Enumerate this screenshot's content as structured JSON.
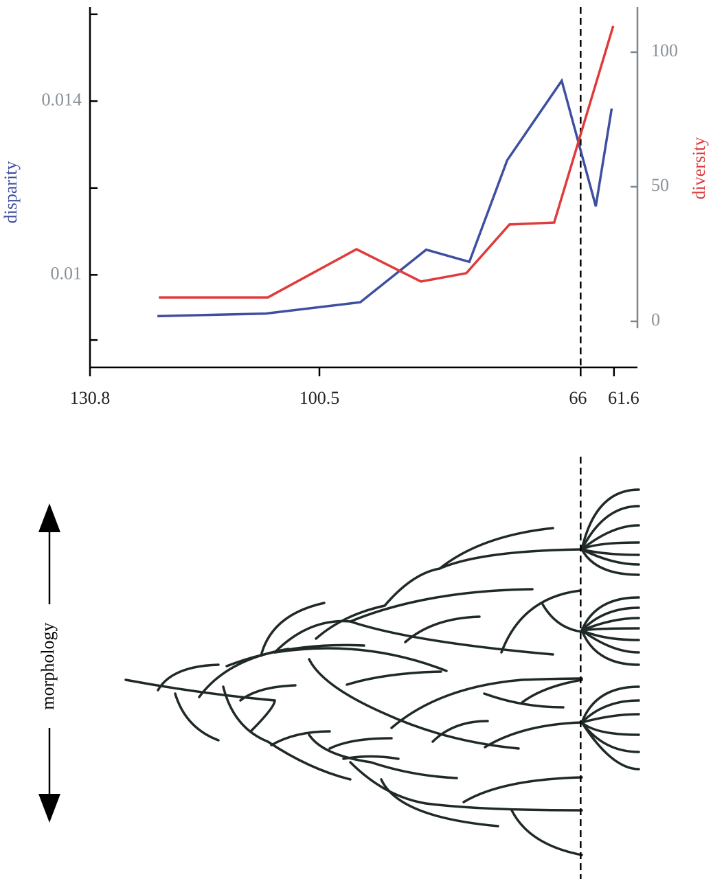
{
  "chart_data": {
    "type": "line",
    "xlim": [
      130.8,
      58.5
    ],
    "xticks": [
      130.8,
      100.5,
      66,
      61.6
    ],
    "ylim": [
      0.00787,
      0.01625
    ],
    "yticks": [
      0.014,
      0.01
    ],
    "yminorticks": [
      0.016,
      0.012,
      0.0085
    ],
    "ylabel": "disparity",
    "y2lim": [
      -17.1,
      118.1
    ],
    "y2ticks": [
      100,
      50,
      0
    ],
    "y2label": "diversity",
    "series": [
      {
        "name": "disparity",
        "color": "#3f4fa0",
        "x": [
          121.9,
          107.6,
          95.1,
          86.4,
          80.7,
          75.7,
          68.5,
          64.0,
          61.9
        ],
        "values": [
          0.00905,
          0.00911,
          0.00937,
          0.01058,
          0.0103,
          0.01264,
          0.01447,
          0.01158,
          0.01383
        ]
      },
      {
        "name": "diversity",
        "color": "#e03a3a",
        "axis": "y2",
        "x": [
          121.7,
          107.3,
          95.6,
          87.1,
          81.1,
          75.4,
          69.5,
          61.7
        ],
        "values": [
          8.9,
          8.9,
          26.8,
          14.8,
          17.9,
          36.0,
          36.7,
          109.7
        ]
      }
    ]
  },
  "diagram": {
    "label": "morphology"
  }
}
